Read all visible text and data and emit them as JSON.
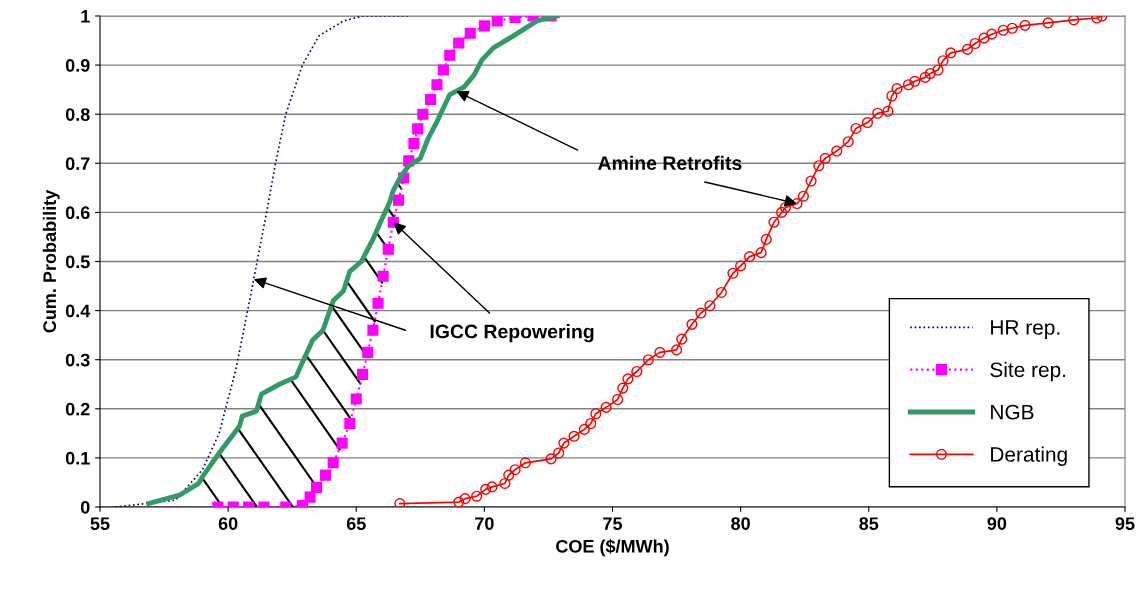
{
  "chart_data": {
    "type": "line",
    "xlabel": "COE ($/MWh)",
    "ylabel": "Cum. Probability",
    "xlim": [
      55,
      95
    ],
    "xticks": [
      55,
      60,
      65,
      70,
      75,
      80,
      85,
      90,
      95
    ],
    "ylim": [
      0,
      1
    ],
    "yticks": [
      0,
      {
        "value": 0.1,
        "label": "0.1"
      },
      {
        "value": 0.2,
        "label": "0.2"
      },
      {
        "value": 0.3,
        "label": "0.3"
      },
      {
        "value": 0.4,
        "label": "0.4"
      },
      {
        "value": 0.5,
        "label": "0.5"
      },
      {
        "value": 0.6,
        "label": "0.6"
      },
      {
        "value": 0.7,
        "label": "0.7"
      },
      {
        "value": 0.8,
        "label": "0.8"
      },
      {
        "value": 0.9,
        "label": "0.9"
      },
      1
    ],
    "grid": "y",
    "legend": "bottom right",
    "series": [
      {
        "name": "HR rep.",
        "color": "#000080",
        "line_style": "dotted",
        "marker": "none",
        "x": [
          55.6,
          57.95,
          59.0,
          59.65,
          60.3,
          60.8,
          61.5,
          61.85,
          62.25,
          62.9,
          63.55,
          64.5,
          65.25,
          67.1
        ],
        "values": [
          0,
          0.014,
          0.076,
          0.15,
          0.28,
          0.41,
          0.6,
          0.7,
          0.8,
          0.9,
          0.96,
          0.99,
          1.0,
          1.0
        ]
      },
      {
        "name": "Site rep.",
        "color": "#ff00ff",
        "line_style": "dotted",
        "marker": "square",
        "x": [
          59.6,
          60.2,
          60.8,
          61.4,
          62.25,
          62.9,
          63.2,
          63.45,
          63.8,
          64.1,
          64.45,
          64.75,
          65.0,
          65.25,
          65.45,
          65.65,
          65.85,
          66.05,
          66.25,
          66.45,
          66.65,
          66.85,
          67.05,
          67.25,
          67.4,
          67.6,
          67.9,
          68.15,
          68.4,
          68.65,
          69.0,
          69.45,
          70.0,
          70.5,
          71.2,
          71.9,
          72.6
        ],
        "values": [
          0,
          0,
          0,
          0,
          0,
          0.003,
          0.02,
          0.04,
          0.065,
          0.09,
          0.13,
          0.17,
          0.22,
          0.27,
          0.315,
          0.36,
          0.415,
          0.47,
          0.525,
          0.58,
          0.625,
          0.67,
          0.705,
          0.74,
          0.77,
          0.8,
          0.83,
          0.86,
          0.89,
          0.92,
          0.945,
          0.965,
          0.98,
          0.99,
          0.997,
          1.0,
          1.0
        ]
      },
      {
        "name": "NGB",
        "color": "#339966",
        "line_style": "solid",
        "marker": "none",
        "x": [
          56.9,
          58.1,
          58.85,
          59.0,
          59.65,
          60.45,
          60.55,
          61.1,
          61.3,
          62.0,
          62.65,
          62.9,
          63.3,
          63.7,
          64.1,
          64.5,
          64.75,
          65.2,
          65.4,
          65.65,
          65.9,
          66.3,
          66.45,
          66.7,
          67.05,
          67.5,
          67.8,
          68.15,
          68.65,
          69.2,
          69.6,
          69.9,
          70.35,
          71.15,
          72.05,
          72.85
        ],
        "values": [
          0.007,
          0.024,
          0.048,
          0.062,
          0.11,
          0.165,
          0.185,
          0.195,
          0.23,
          0.25,
          0.265,
          0.295,
          0.34,
          0.36,
          0.42,
          0.44,
          0.48,
          0.5,
          0.52,
          0.545,
          0.575,
          0.62,
          0.645,
          0.67,
          0.695,
          0.71,
          0.75,
          0.785,
          0.84,
          0.855,
          0.88,
          0.91,
          0.935,
          0.96,
          0.99,
          1.0
        ]
      },
      {
        "name": "Derating",
        "color": "#ff0000",
        "line_style": "solid",
        "marker": "circle",
        "x": [
          66.7,
          69.0,
          69.25,
          69.7,
          70.05,
          70.3,
          70.8,
          70.95,
          71.2,
          71.6,
          72.6,
          72.9,
          73.1,
          73.5,
          73.9,
          74.15,
          74.35,
          74.75,
          75.2,
          75.4,
          75.6,
          75.95,
          76.4,
          76.85,
          77.5,
          77.7,
          78.1,
          78.45,
          78.8,
          79.25,
          79.7,
          80.0,
          80.35,
          80.8,
          81.0,
          81.3,
          81.6,
          81.75,
          82.2,
          82.45,
          82.75,
          83.05,
          83.3,
          83.75,
          84.2,
          84.5,
          84.95,
          85.35,
          85.75,
          85.9,
          86.1,
          86.55,
          86.8,
          87.2,
          87.4,
          87.7,
          87.9,
          88.2,
          88.85,
          89.15,
          89.5,
          89.8,
          90.25,
          90.6,
          91.1,
          92.0,
          93.0,
          93.9,
          94.1
        ],
        "values": [
          0.007,
          0.01,
          0.017,
          0.022,
          0.036,
          0.041,
          0.048,
          0.065,
          0.076,
          0.09,
          0.098,
          0.11,
          0.13,
          0.144,
          0.158,
          0.17,
          0.19,
          0.203,
          0.219,
          0.242,
          0.261,
          0.276,
          0.3,
          0.315,
          0.32,
          0.342,
          0.372,
          0.395,
          0.41,
          0.437,
          0.476,
          0.491,
          0.51,
          0.518,
          0.545,
          0.58,
          0.6,
          0.61,
          0.618,
          0.633,
          0.664,
          0.695,
          0.71,
          0.725,
          0.744,
          0.771,
          0.783,
          0.802,
          0.806,
          0.837,
          0.852,
          0.86,
          0.867,
          0.875,
          0.883,
          0.89,
          0.909,
          0.925,
          0.932,
          0.944,
          0.955,
          0.963,
          0.971,
          0.975,
          0.981,
          0.986,
          0.992,
          0.996,
          1.0
        ]
      }
    ],
    "annotations": [
      {
        "text": "Amine Retrofits",
        "x": 82.2,
        "y": 0.618
      },
      {
        "text": "IGCC Repowering",
        "x": 66.45,
        "y": 0.58
      }
    ]
  }
}
